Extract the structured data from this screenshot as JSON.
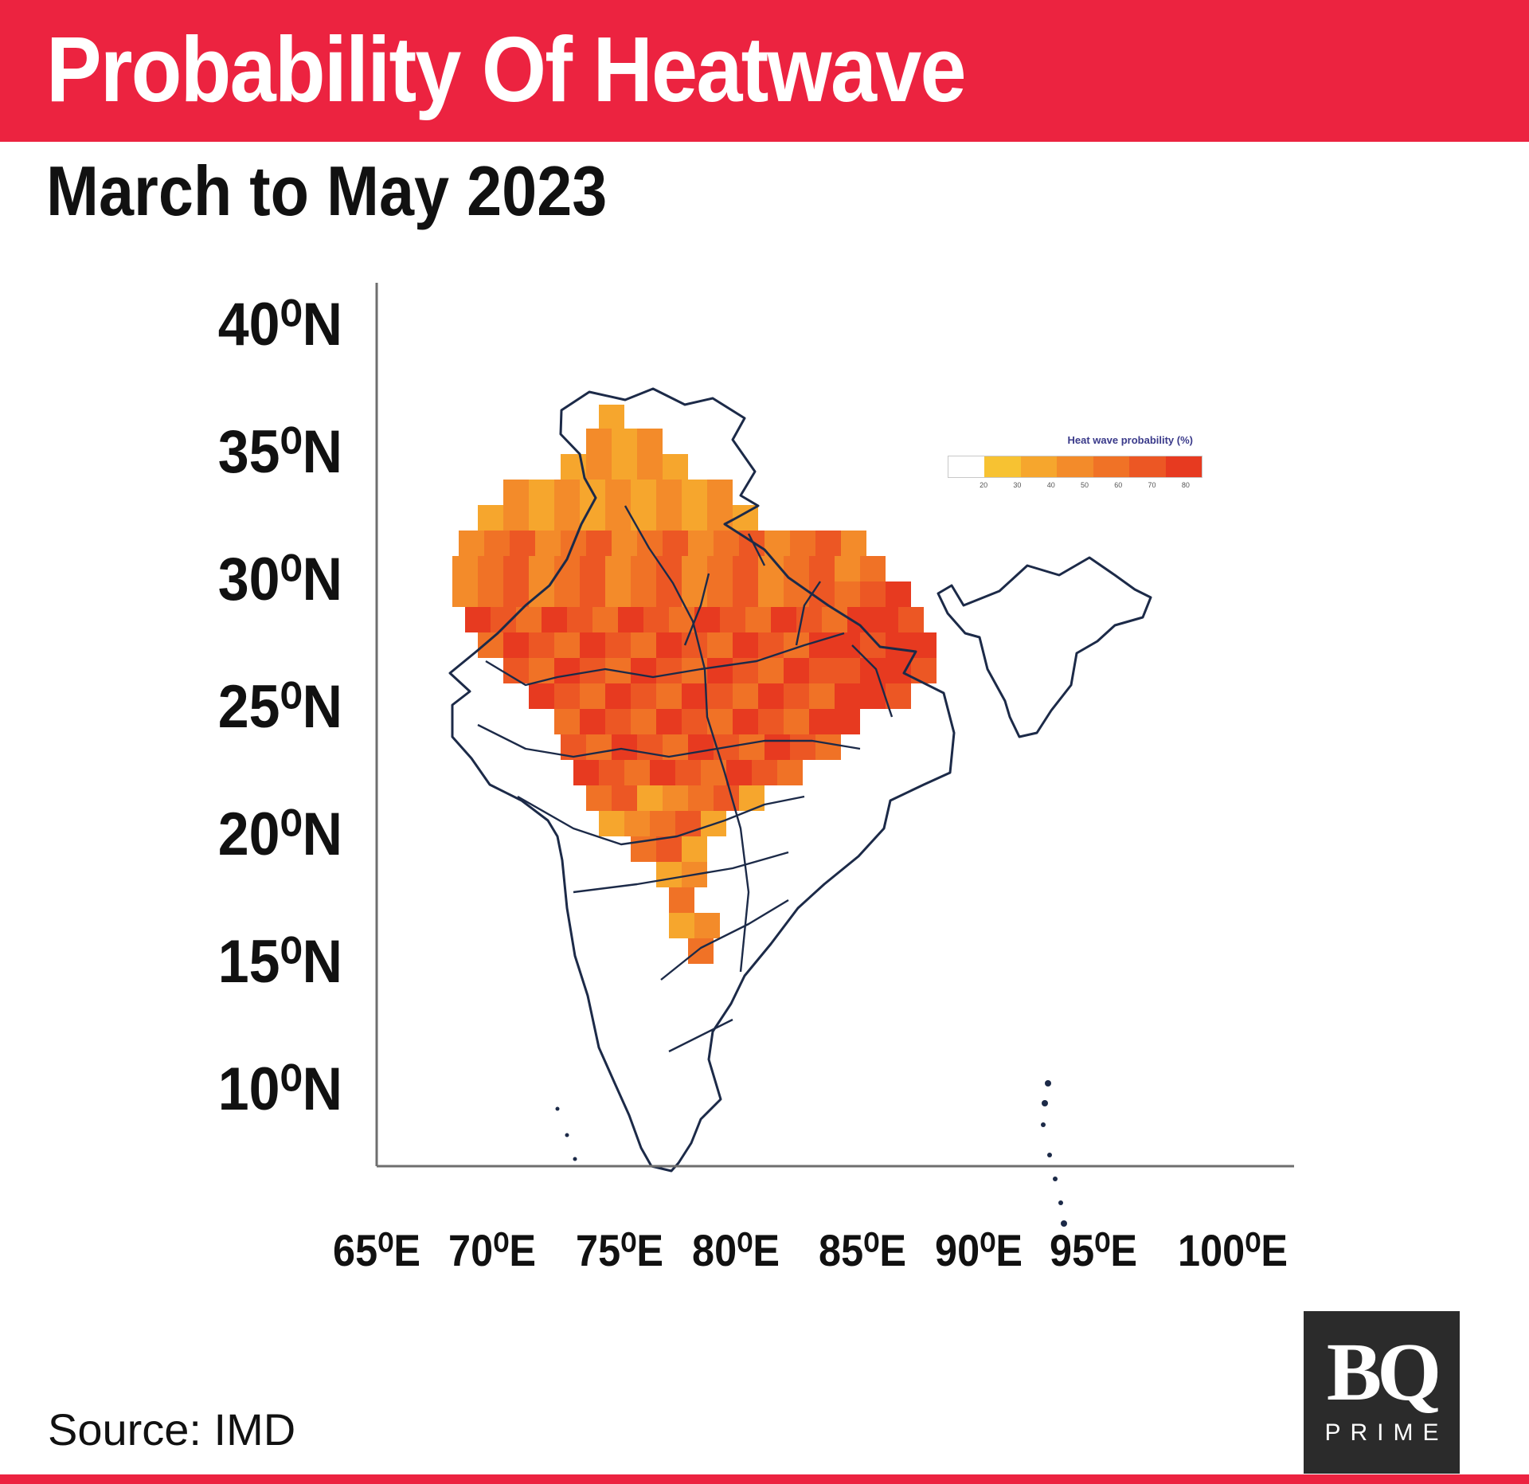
{
  "header": {
    "title": "Probability Of Heatwave",
    "subtitle": "March to May 2023"
  },
  "map": {
    "latitude_labels": [
      "40⁰N",
      "35⁰N",
      "30⁰N",
      "25⁰N",
      "20⁰N",
      "15⁰N",
      "10⁰N"
    ],
    "longitude_labels": [
      "65⁰E",
      "70⁰E",
      "75⁰E",
      "80⁰E",
      "85⁰E",
      "90⁰E",
      "95⁰E",
      "100⁰E"
    ],
    "legend": {
      "title": "Heat wave probability (%)",
      "ticks": [
        "20",
        "30",
        "40",
        "50",
        "60",
        "70",
        "80"
      ],
      "colors": [
        "#ffffff",
        "#f7c232",
        "#f6a62d",
        "#f38b2a",
        "#f07226",
        "#ec5724",
        "#e73a20"
      ]
    }
  },
  "footer": {
    "source": "Source: IMD",
    "logo_text": "BQ",
    "logo_subtext": "PRIME"
  },
  "colors": {
    "accent": "#ec2340",
    "outline": "#1c2a48"
  }
}
